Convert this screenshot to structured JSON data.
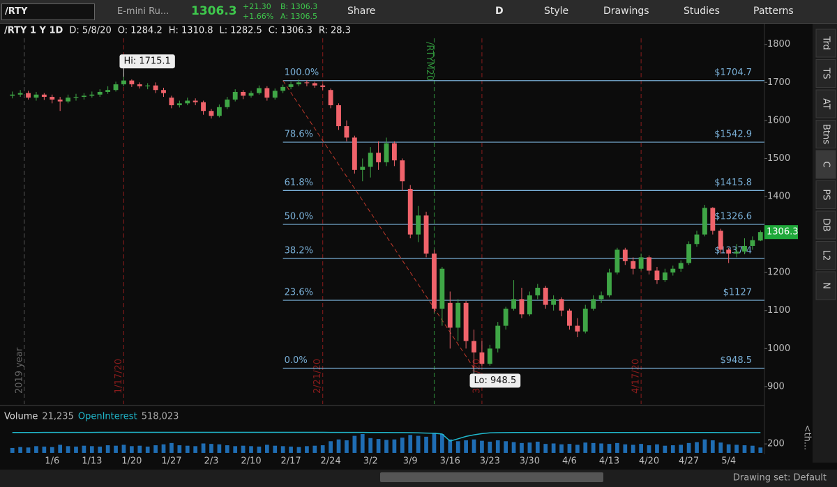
{
  "toolbar": {
    "symbol": "/RTY",
    "description": "E-mini Ru...",
    "last": "1306.3",
    "change": "+21.30",
    "change_pct": "+1.66%",
    "bid": "B: 1306.3",
    "ask": "A: 1306.5",
    "buttons": [
      "Share",
      "D",
      "Style",
      "Drawings",
      "Studies",
      "Patterns"
    ]
  },
  "side_tabs": [
    "Trd",
    "TS",
    "AT",
    "Btns",
    "C",
    "PS",
    "DB",
    "L2",
    "N"
  ],
  "status_bar": {
    "drawing_set": "Drawing set: Default"
  },
  "chart_data": {
    "type": "candlestick",
    "header": [
      "/RTY 1 Y 1D",
      "D: 5/8/20",
      "O: 1284.2",
      "H: 1310.8",
      "L: 1282.5",
      "C: 1306.3",
      "R: 28.3"
    ],
    "categories": [
      null,
      null,
      null,
      null,
      null,
      "1/6",
      null,
      null,
      null,
      null,
      "1/13",
      null,
      null,
      null,
      null,
      "1/20",
      null,
      null,
      null,
      null,
      "1/27",
      null,
      null,
      null,
      null,
      "2/3",
      null,
      null,
      null,
      null,
      "2/10",
      null,
      null,
      null,
      null,
      "2/17",
      null,
      null,
      null,
      null,
      "2/24",
      null,
      null,
      null,
      null,
      "3/2",
      null,
      null,
      null,
      null,
      "3/9",
      null,
      null,
      null,
      null,
      "3/16",
      null,
      null,
      null,
      null,
      "3/23",
      null,
      null,
      null,
      null,
      "3/30",
      null,
      null,
      null,
      null,
      "4/6",
      null,
      null,
      null,
      null,
      "4/13",
      null,
      null,
      null,
      null,
      "4/20",
      null,
      null,
      null,
      null,
      "4/27",
      null,
      null,
      null,
      null,
      "5/4",
      null,
      null,
      null,
      null
    ],
    "ohlc": {
      "open": [
        1665,
        1668,
        1672,
        1660,
        1668,
        1662,
        1655,
        1650,
        1660,
        1662,
        1665,
        1668,
        1675,
        1680,
        1695,
        1705,
        1695,
        1690,
        1692,
        1680,
        1660,
        1640,
        1645,
        1652,
        1648,
        1625,
        1612,
        1635,
        1655,
        1675,
        1665,
        1672,
        1685,
        1660,
        1678,
        1688,
        1695,
        1700,
        1698,
        1692,
        1680,
        1640,
        1585,
        1555,
        1470,
        1478,
        1515,
        1490,
        1540,
        1495,
        1420,
        1300,
        1350,
        1250,
        1105,
        1120,
        1055,
        1120,
        1020,
        990,
        960,
        1000,
        1060,
        1105,
        1130,
        1090,
        1140,
        1160,
        1115,
        1130,
        1100,
        1060,
        1045,
        1105,
        1130,
        1140,
        1200,
        1260,
        1230,
        1210,
        1240,
        1205,
        1180,
        1200,
        1210,
        1225,
        1275,
        1300,
        1370,
        1310,
        1260,
        1250,
        1255,
        1270,
        1284.2
      ],
      "high": [
        1676,
        1680,
        1678,
        1675,
        1672,
        1668,
        1662,
        1668,
        1670,
        1672,
        1676,
        1682,
        1690,
        1702,
        1715.1,
        1708,
        1700,
        1698,
        1700,
        1686,
        1665,
        1652,
        1660,
        1658,
        1652,
        1630,
        1642,
        1662,
        1682,
        1680,
        1678,
        1692,
        1690,
        1684,
        1694,
        1702,
        1708,
        1706,
        1702,
        1696,
        1684,
        1645,
        1600,
        1560,
        1500,
        1530,
        1545,
        1555,
        1545,
        1500,
        1430,
        1375,
        1360,
        1260,
        1215,
        1150,
        1130,
        1125,
        1050,
        1020,
        1010,
        1070,
        1110,
        1180,
        1160,
        1150,
        1170,
        1165,
        1140,
        1135,
        1105,
        1080,
        1115,
        1140,
        1150,
        1210,
        1265,
        1265,
        1240,
        1250,
        1245,
        1215,
        1210,
        1218,
        1232,
        1282,
        1310,
        1378,
        1372,
        1315,
        1265,
        1275,
        1290,
        1295,
        1310.8
      ],
      "low": [
        1658,
        1662,
        1655,
        1652,
        1654,
        1645,
        1625,
        1645,
        1652,
        1655,
        1660,
        1662,
        1670,
        1676,
        1690,
        1688,
        1684,
        1682,
        1672,
        1662,
        1632,
        1634,
        1640,
        1640,
        1615,
        1605,
        1608,
        1630,
        1650,
        1656,
        1660,
        1668,
        1652,
        1655,
        1672,
        1682,
        1690,
        1690,
        1686,
        1680,
        1632,
        1575,
        1545,
        1460,
        1440,
        1450,
        1470,
        1480,
        1480,
        1415,
        1290,
        1280,
        1240,
        1095,
        1060,
        1000,
        1020,
        1000,
        948.5,
        955,
        955,
        990,
        1050,
        1100,
        1080,
        1085,
        1130,
        1105,
        1100,
        1085,
        1050,
        1030,
        1040,
        1100,
        1120,
        1135,
        1195,
        1220,
        1195,
        1205,
        1195,
        1170,
        1175,
        1192,
        1202,
        1220,
        1268,
        1295,
        1300,
        1250,
        1225,
        1240,
        1248,
        1260,
        1282.5
      ],
      "close": [
        1668,
        1672,
        1660,
        1668,
        1662,
        1655,
        1650,
        1660,
        1662,
        1665,
        1668,
        1675,
        1680,
        1695,
        1705,
        1695,
        1690,
        1692,
        1680,
        1672,
        1640,
        1645,
        1652,
        1648,
        1625,
        1612,
        1635,
        1655,
        1675,
        1665,
        1672,
        1685,
        1660,
        1678,
        1688,
        1695,
        1700,
        1698,
        1692,
        1688,
        1640,
        1585,
        1555,
        1470,
        1478,
        1515,
        1490,
        1540,
        1495,
        1440,
        1300,
        1350,
        1250,
        1105,
        1210,
        1055,
        1120,
        1020,
        990,
        960,
        1000,
        1060,
        1105,
        1130,
        1090,
        1140,
        1160,
        1115,
        1130,
        1100,
        1060,
        1045,
        1105,
        1130,
        1140,
        1200,
        1260,
        1230,
        1210,
        1240,
        1205,
        1180,
        1200,
        1210,
        1225,
        1275,
        1300,
        1370,
        1310,
        1260,
        1250,
        1255,
        1270,
        1285,
        1306.3
      ]
    },
    "up_color": "#3fa646",
    "down_color": "#f0636b",
    "ylim": [
      854,
      1816
    ],
    "yticks": [
      900,
      1000,
      1100,
      1200,
      1300,
      1400,
      1500,
      1600,
      1700,
      1800
    ],
    "last_price": {
      "value": 1306.3,
      "label": "1306.3",
      "color": "#1fa83a"
    },
    "fib_color": "#79afd6",
    "fib_anchor_x": [
      34,
      58
    ],
    "fib_levels": [
      {
        "name": "100.0%",
        "value": 1704.7,
        "label": "$1704.7"
      },
      {
        "name": "78.6%",
        "value": 1542.9,
        "label": "$1542.9"
      },
      {
        "name": "61.8%",
        "value": 1415.8,
        "label": "$1415.8"
      },
      {
        "name": "50.0%",
        "value": 1326.6,
        "label": "$1326.6"
      },
      {
        "name": "38.2%",
        "value": 1237.4,
        "label": "$1237.4"
      },
      {
        "name": "23.6%",
        "value": 1127,
        "label": "$1127"
      },
      {
        "name": "0.0%",
        "value": 948.5,
        "label": "$948.5"
      }
    ],
    "annotations": [
      {
        "text": "Hi: 1715.1",
        "x": 14,
        "value": 1715.1
      },
      {
        "text": "Lo: 948.5",
        "x": 58,
        "value": 948.5
      }
    ],
    "event_lines": [
      {
        "label": "2019 year",
        "x": 1.5,
        "color": "#555555"
      },
      {
        "label": "1/17/20",
        "x": 14,
        "color": "#8a1c1c"
      },
      {
        "label": "2/21/20",
        "x": 39,
        "color": "#8a1c1c"
      },
      {
        "label": "/RTYM20",
        "x": 53,
        "color": "#2f8f3a"
      },
      {
        "label": "3/20/20",
        "x": 59,
        "color": "#8a1c1c"
      },
      {
        "label": "4/17/20",
        "x": 79,
        "color": "#8a1c1c"
      }
    ],
    "volume": {
      "title": "Volume",
      "value_label": "21,235",
      "oi_title": "OpenInterest",
      "oi_label": "518,023",
      "unit_label": "<th...",
      "color": "#1f6db3",
      "oi_color": "#20b8cc",
      "ylim": [
        0,
        700
      ],
      "yticks": [
        200
      ],
      "y2lim": [
        0,
        800
      ],
      "values": [
        110,
        130,
        120,
        150,
        140,
        130,
        180,
        150,
        140,
        160,
        150,
        140,
        170,
        160,
        180,
        150,
        160,
        140,
        170,
        190,
        220,
        170,
        160,
        150,
        210,
        200,
        190,
        170,
        150,
        160,
        150,
        140,
        180,
        160,
        150,
        140,
        130,
        150,
        160,
        170,
        260,
        300,
        280,
        380,
        420,
        330,
        310,
        290,
        300,
        340,
        400,
        380,
        360,
        450,
        420,
        300,
        260,
        280,
        300,
        270,
        250,
        280,
        260,
        240,
        220,
        230,
        250,
        200,
        210,
        190,
        200,
        180,
        230,
        220,
        210,
        200,
        220,
        190,
        180,
        200,
        170,
        190,
        160,
        170,
        180,
        220,
        240,
        300,
        280,
        230,
        190,
        180,
        170,
        160,
        120
      ],
      "oi": [
        520,
        520,
        521,
        521,
        522,
        522,
        522,
        523,
        523,
        523,
        523,
        524,
        524,
        524,
        524,
        525,
        525,
        525,
        525,
        525,
        525,
        525,
        525,
        525,
        525,
        525,
        525,
        525,
        525,
        525,
        524,
        524,
        524,
        524,
        524,
        524,
        524,
        524,
        524,
        524,
        523,
        523,
        523,
        522,
        522,
        521,
        520,
        519,
        518,
        517,
        515,
        510,
        505,
        500,
        480,
        300,
        360,
        420,
        460,
        490,
        510,
        515,
        518,
        520,
        520,
        520,
        520,
        520,
        520,
        520,
        520,
        520,
        520,
        520,
        520,
        520,
        520,
        520,
        520,
        520,
        520,
        520,
        519,
        519,
        519,
        519,
        519,
        519,
        519,
        518,
        518,
        518,
        518,
        518,
        518
      ]
    }
  }
}
